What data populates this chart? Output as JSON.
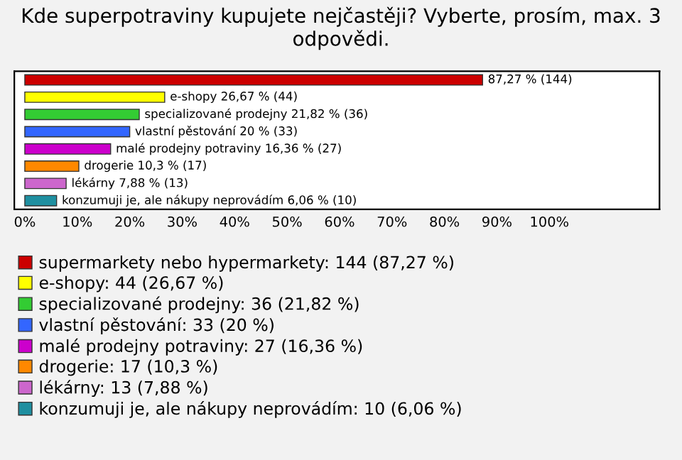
{
  "chart_data": {
    "type": "bar",
    "orientation": "horizontal",
    "stacked": true,
    "title": "Kde superpotraviny kupujete nejčastěji? Vyberte, prosím, max. 3 odpovědi.",
    "categories": [
      null,
      null,
      null,
      null,
      null,
      null,
      null,
      null
    ],
    "series": [
      {
        "name": "supermarkety nebo hypermarkety: 144 (87,27 %)",
        "color": "#cc0000",
        "values": [
          87.27,
          null,
          null,
          null,
          null,
          null,
          null,
          null
        ],
        "value_labels": [
          "87,27 % (144)",
          null,
          null,
          null,
          null,
          null,
          null,
          null
        ]
      },
      {
        "name": "e-shopy: 44 (26,67 %)",
        "color": "#ffff00",
        "values": [
          null,
          26.67,
          null,
          null,
          null,
          null,
          null,
          null
        ],
        "value_labels": [
          null,
          "e-shopy 26,67 % (44)",
          null,
          null,
          null,
          null,
          null,
          null
        ]
      },
      {
        "name": "specializované prodejny: 36 (21,82 %)",
        "color": "#33cc33",
        "values": [
          null,
          null,
          21.82,
          null,
          null,
          null,
          null,
          null
        ],
        "value_labels": [
          null,
          null,
          "specializované prodejny 21,82 % (36)",
          null,
          null,
          null,
          null,
          null
        ]
      },
      {
        "name": "vlastní pěstování: 33 (20 %)",
        "color": "#3366ff",
        "values": [
          null,
          null,
          null,
          20,
          null,
          null,
          null,
          null
        ],
        "value_labels": [
          null,
          null,
          null,
          "vlastní pěstování 20 % (33)",
          null,
          null,
          null,
          null
        ]
      },
      {
        "name": "malé prodejny potraviny: 27 (16,36 %)",
        "color": "#cc00cc",
        "values": [
          null,
          null,
          null,
          null,
          16.36,
          null,
          null,
          null
        ],
        "value_labels": [
          null,
          null,
          null,
          null,
          "malé prodejny potraviny 16,36 % (27)",
          null,
          null,
          null
        ]
      },
      {
        "name": "drogerie: 17 (10,3 %)",
        "color": "#ff8800",
        "values": [
          null,
          null,
          null,
          null,
          null,
          10.3,
          null,
          null
        ],
        "value_labels": [
          null,
          null,
          null,
          null,
          null,
          "drogerie 10,3 % (17)",
          null,
          null
        ]
      },
      {
        "name": "lékárny: 13 (7,88 %)",
        "color": "#cc66cc",
        "values": [
          null,
          null,
          null,
          null,
          null,
          null,
          7.88,
          null
        ],
        "value_labels": [
          null,
          null,
          null,
          null,
          null,
          null,
          "lékárny 7,88 % (13)",
          null
        ]
      },
      {
        "name": "konzumuji je, ale nákupy neprovádím: 10 (6,06 %)",
        "color": "#1f8fa0",
        "values": [
          null,
          null,
          null,
          null,
          null,
          null,
          null,
          6.06
        ],
        "value_labels": [
          null,
          null,
          null,
          null,
          null,
          null,
          null,
          "konzumuji je, ale nákupy neprovádím 6,06 % (10)"
        ]
      }
    ],
    "xlim": [
      -2,
      121
    ],
    "xticks": [
      {
        "value": 0,
        "label": "0%"
      },
      {
        "value": 10,
        "label": "10%"
      },
      {
        "value": 20,
        "label": "20%"
      },
      {
        "value": 30,
        "label": "30%"
      },
      {
        "value": 40,
        "label": "40%"
      },
      {
        "value": 50,
        "label": "50%"
      },
      {
        "value": 60,
        "label": "60%"
      },
      {
        "value": 70,
        "label": "70%"
      },
      {
        "value": 80,
        "label": "80%"
      },
      {
        "value": 90,
        "label": "90%"
      },
      {
        "value": 100,
        "label": "100%"
      }
    ],
    "legend": "bottom"
  }
}
